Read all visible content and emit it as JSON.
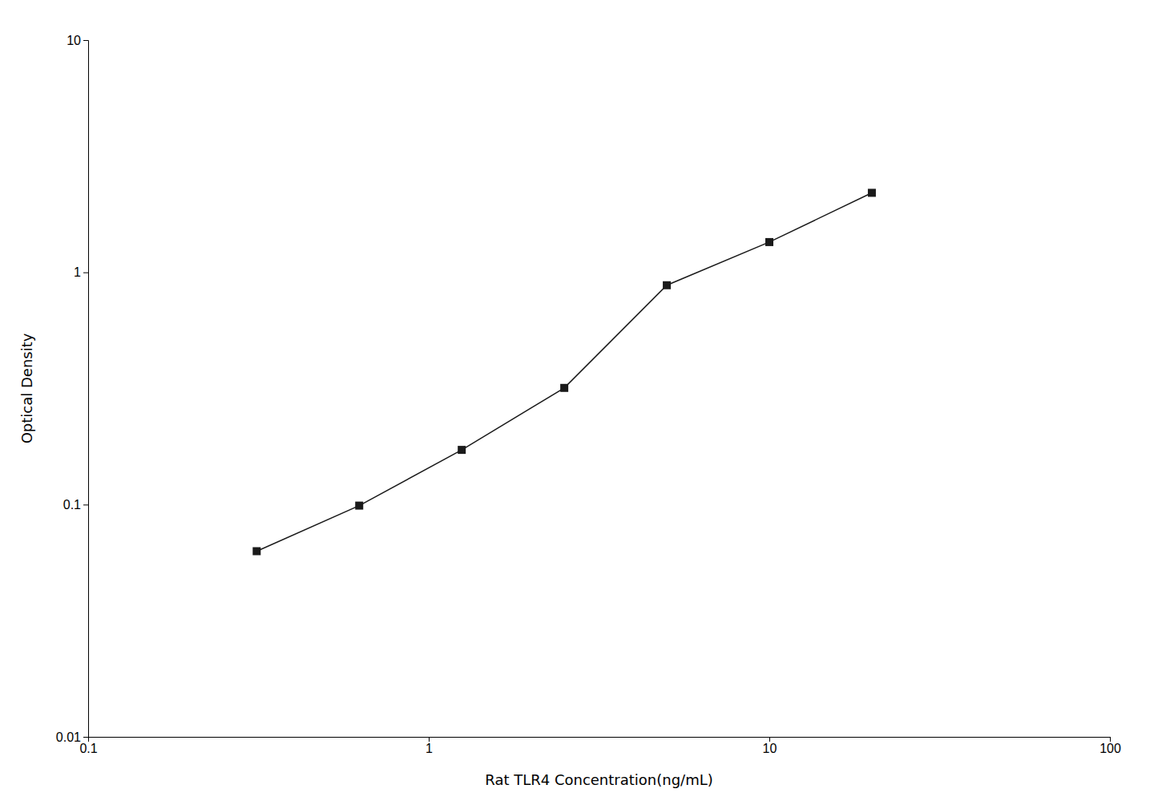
{
  "chart_data": {
    "type": "line",
    "xlabel": "Rat TLR4 Concentration(ng/mL)",
    "ylabel": "Optical Density",
    "x": [
      0.3125,
      0.625,
      1.25,
      2.5,
      5.0,
      10.0,
      20.0
    ],
    "values": [
      0.063,
      0.099,
      0.172,
      0.318,
      0.88,
      1.35,
      2.2
    ],
    "color": "#1a1a1a",
    "marker": "square",
    "log": true,
    "grid": false,
    "xlim": [
      0.1,
      100
    ],
    "ylim": [
      0.01,
      10
    ],
    "xticks": [
      0.1,
      1,
      10,
      100
    ],
    "yticks": [
      0.01,
      0.1,
      1,
      10
    ]
  }
}
